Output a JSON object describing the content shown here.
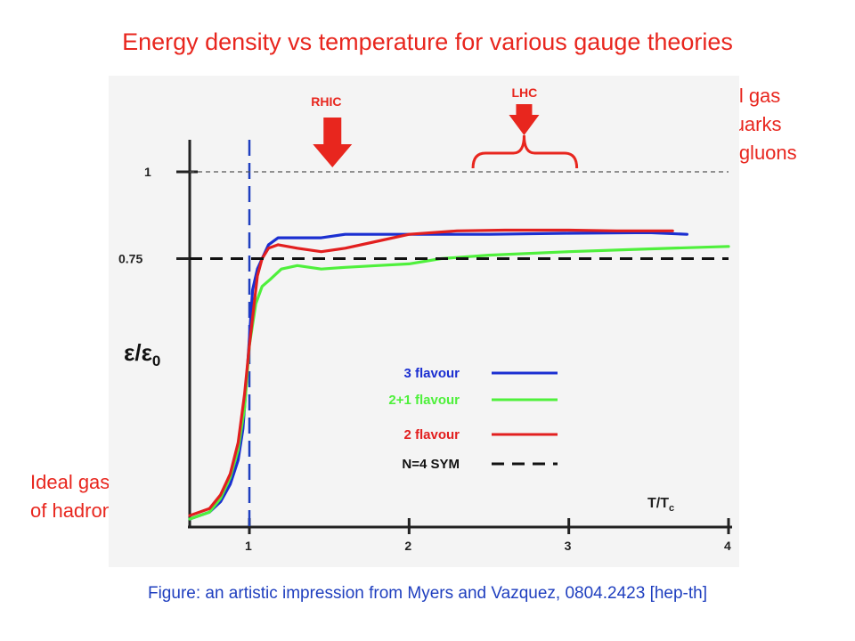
{
  "title": "Energy density vs temperature for various gauge theories",
  "notes": {
    "top": [
      "Ideal gas",
      "of quarks",
      "and gluons"
    ],
    "bottom": [
      "Ideal gas",
      "of hadrons"
    ]
  },
  "caption": "Figure: an artistic impression from Myers and Vazquez, 0804.2423 [hep-th]",
  "chart_data": {
    "type": "line",
    "xlabel": "T/T",
    "xlabel_sub": "c",
    "ylabel": "ε/ε",
    "ylabel_sub": "0",
    "xlim": [
      0.65,
      4.0
    ],
    "ylim": [
      0.0,
      1.0
    ],
    "x_ticks": [
      1,
      2,
      3,
      4
    ],
    "y_ticks": [
      {
        "value": 1,
        "label": "1"
      },
      {
        "value": 0.75,
        "label": "0.75"
      }
    ],
    "annotations": [
      {
        "label": "RHIC",
        "x": 1.52
      },
      {
        "label": "LHC",
        "x": 2.72,
        "range": [
          2.4,
          3.05
        ]
      }
    ],
    "reference_lines": [
      {
        "name": "Tc",
        "orientation": "vertical",
        "x": 1,
        "color": "#1f3fbf"
      },
      {
        "orientation": "horizontal",
        "y": 1,
        "color": "#555555"
      }
    ],
    "series": [
      {
        "name": "3 flavour",
        "color": "#1b2fd1",
        "x": [
          0.65,
          0.75,
          0.82,
          0.88,
          0.93,
          0.96,
          0.99,
          1.02,
          1.05,
          1.08,
          1.12,
          1.18,
          1.3,
          1.45,
          1.6,
          2.0,
          2.5,
          3.0,
          3.5,
          3.74
        ],
        "y": [
          0.0,
          0.02,
          0.05,
          0.1,
          0.17,
          0.26,
          0.45,
          0.66,
          0.72,
          0.75,
          0.79,
          0.81,
          0.81,
          0.81,
          0.82,
          0.82,
          0.82,
          0.823,
          0.825,
          0.82
        ]
      },
      {
        "name": "2+1 flavour",
        "color": "#4ff03c",
        "x": [
          0.65,
          0.75,
          0.82,
          0.88,
          0.93,
          0.97,
          1.0,
          1.04,
          1.08,
          1.13,
          1.2,
          1.3,
          1.45,
          1.6,
          1.8,
          2.0,
          2.2,
          2.5,
          3.0,
          3.5,
          4.0
        ],
        "y": [
          0.0,
          0.02,
          0.06,
          0.12,
          0.2,
          0.32,
          0.5,
          0.62,
          0.67,
          0.69,
          0.72,
          0.73,
          0.72,
          0.725,
          0.73,
          0.735,
          0.75,
          0.76,
          0.77,
          0.778,
          0.785
        ]
      },
      {
        "name": "2 flavour",
        "color": "#e21f1f",
        "x": [
          0.65,
          0.75,
          0.82,
          0.88,
          0.93,
          0.97,
          1.0,
          1.05,
          1.08,
          1.12,
          1.18,
          1.3,
          1.45,
          1.6,
          1.8,
          2.0,
          2.3,
          2.6,
          3.0,
          3.3,
          3.65
        ],
        "y": [
          0.01,
          0.03,
          0.07,
          0.13,
          0.22,
          0.36,
          0.5,
          0.7,
          0.75,
          0.78,
          0.79,
          0.78,
          0.77,
          0.78,
          0.8,
          0.82,
          0.83,
          0.832,
          0.832,
          0.83,
          0.83
        ]
      },
      {
        "name": "N=4 SYM",
        "color": "#111111",
        "dashed": true,
        "x": [
          0.65,
          4.0
        ],
        "y": [
          0.75,
          0.75
        ]
      }
    ],
    "legend_position": "center-right",
    "grid": false
  }
}
